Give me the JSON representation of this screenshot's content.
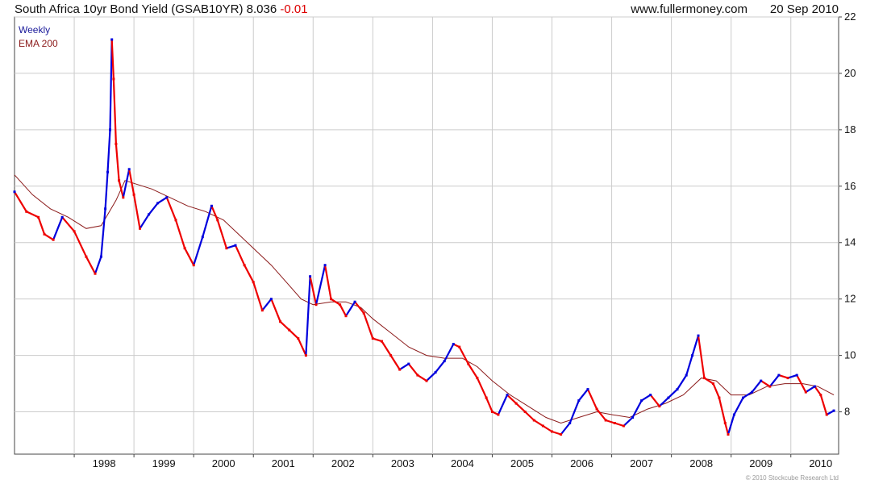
{
  "header": {
    "title": "South Africa 10yr Bond Yield (GSAB10YR) 8.036",
    "change": "-0.01",
    "site": "www.fullermoney.com",
    "date": "20 Sep 2010"
  },
  "legend": {
    "weekly": "Weekly",
    "ema": "EMA 200"
  },
  "copyright": "© 2010 Stockcube Research Ltd",
  "colors": {
    "up": "#0000dd",
    "down": "#ee0000",
    "ema": "#8b1a1a",
    "grid": "#cccccc",
    "change": "#dd0000",
    "legend_weekly": "#1a1a9a",
    "legend_ema": "#8b1a1a"
  },
  "chart_data": {
    "type": "line",
    "title": "South Africa 10yr Bond Yield (GSAB10YR) 8.036 -0.01",
    "xlabel": "",
    "ylabel": "",
    "x_ticks": [
      "1998",
      "1999",
      "2000",
      "2001",
      "2002",
      "2003",
      "2004",
      "2005",
      "2006",
      "2007",
      "2008",
      "2009",
      "2010"
    ],
    "y_ticks": [
      8,
      10,
      12,
      14,
      16,
      18,
      20,
      22
    ],
    "ylim": [
      6.5,
      22
    ],
    "xlim": [
      1997.0,
      2010.8
    ],
    "grid": true,
    "legend_placement": "top-left",
    "series": [
      {
        "name": "Weekly",
        "points": [
          [
            1997.0,
            15.8
          ],
          [
            1997.2,
            15.1
          ],
          [
            1997.4,
            14.9
          ],
          [
            1997.5,
            14.3
          ],
          [
            1997.65,
            14.1
          ],
          [
            1997.8,
            14.9
          ],
          [
            1998.0,
            14.4
          ],
          [
            1998.2,
            13.5
          ],
          [
            1998.35,
            12.9
          ],
          [
            1998.45,
            13.5
          ],
          [
            1998.52,
            15.2
          ],
          [
            1998.56,
            16.5
          ],
          [
            1998.6,
            18.0
          ],
          [
            1998.63,
            21.2
          ],
          [
            1998.66,
            19.8
          ],
          [
            1998.7,
            17.5
          ],
          [
            1998.75,
            16.2
          ],
          [
            1998.82,
            15.6
          ],
          [
            1998.92,
            16.6
          ],
          [
            1999.0,
            15.7
          ],
          [
            1999.1,
            14.5
          ],
          [
            1999.25,
            15.0
          ],
          [
            1999.4,
            15.4
          ],
          [
            1999.55,
            15.6
          ],
          [
            1999.7,
            14.8
          ],
          [
            1999.85,
            13.8
          ],
          [
            2000.0,
            13.2
          ],
          [
            2000.15,
            14.2
          ],
          [
            2000.3,
            15.3
          ],
          [
            2000.4,
            14.8
          ],
          [
            2000.55,
            13.8
          ],
          [
            2000.7,
            13.9
          ],
          [
            2000.85,
            13.2
          ],
          [
            2001.0,
            12.6
          ],
          [
            2001.15,
            11.6
          ],
          [
            2001.3,
            12.0
          ],
          [
            2001.45,
            11.2
          ],
          [
            2001.6,
            10.9
          ],
          [
            2001.75,
            10.6
          ],
          [
            2001.88,
            10.0
          ],
          [
            2001.95,
            12.8
          ],
          [
            2002.05,
            11.8
          ],
          [
            2002.2,
            13.2
          ],
          [
            2002.3,
            12.0
          ],
          [
            2002.45,
            11.8
          ],
          [
            2002.55,
            11.4
          ],
          [
            2002.7,
            11.9
          ],
          [
            2002.85,
            11.5
          ],
          [
            2003.0,
            10.6
          ],
          [
            2003.15,
            10.5
          ],
          [
            2003.3,
            10.0
          ],
          [
            2003.45,
            9.5
          ],
          [
            2003.6,
            9.7
          ],
          [
            2003.75,
            9.3
          ],
          [
            2003.9,
            9.1
          ],
          [
            2004.05,
            9.4
          ],
          [
            2004.2,
            9.8
          ],
          [
            2004.35,
            10.4
          ],
          [
            2004.45,
            10.3
          ],
          [
            2004.6,
            9.7
          ],
          [
            2004.75,
            9.2
          ],
          [
            2004.9,
            8.5
          ],
          [
            2005.0,
            8.0
          ],
          [
            2005.1,
            7.9
          ],
          [
            2005.25,
            8.6
          ],
          [
            2005.4,
            8.3
          ],
          [
            2005.55,
            8.0
          ],
          [
            2005.7,
            7.7
          ],
          [
            2005.85,
            7.5
          ],
          [
            2006.0,
            7.3
          ],
          [
            2006.15,
            7.2
          ],
          [
            2006.3,
            7.6
          ],
          [
            2006.45,
            8.4
          ],
          [
            2006.6,
            8.8
          ],
          [
            2006.75,
            8.1
          ],
          [
            2006.9,
            7.7
          ],
          [
            2007.05,
            7.6
          ],
          [
            2007.2,
            7.5
          ],
          [
            2007.35,
            7.8
          ],
          [
            2007.5,
            8.4
          ],
          [
            2007.65,
            8.6
          ],
          [
            2007.8,
            8.2
          ],
          [
            2007.95,
            8.5
          ],
          [
            2008.1,
            8.8
          ],
          [
            2008.25,
            9.3
          ],
          [
            2008.35,
            10.0
          ],
          [
            2008.45,
            10.7
          ],
          [
            2008.55,
            9.2
          ],
          [
            2008.7,
            9.0
          ],
          [
            2008.8,
            8.5
          ],
          [
            2008.9,
            7.6
          ],
          [
            2008.95,
            7.2
          ],
          [
            2009.05,
            7.9
          ],
          [
            2009.2,
            8.5
          ],
          [
            2009.35,
            8.7
          ],
          [
            2009.5,
            9.1
          ],
          [
            2009.65,
            8.9
          ],
          [
            2009.8,
            9.3
          ],
          [
            2009.95,
            9.2
          ],
          [
            2010.1,
            9.3
          ],
          [
            2010.25,
            8.7
          ],
          [
            2010.4,
            8.9
          ],
          [
            2010.5,
            8.6
          ],
          [
            2010.6,
            7.9
          ],
          [
            2010.72,
            8.04
          ]
        ]
      },
      {
        "name": "EMA 200",
        "points": [
          [
            1997.0,
            16.4
          ],
          [
            1997.3,
            15.7
          ],
          [
            1997.6,
            15.2
          ],
          [
            1997.9,
            14.9
          ],
          [
            1998.2,
            14.5
          ],
          [
            1998.45,
            14.6
          ],
          [
            1998.7,
            15.5
          ],
          [
            1998.85,
            16.2
          ],
          [
            1999.0,
            16.1
          ],
          [
            1999.3,
            15.9
          ],
          [
            1999.6,
            15.6
          ],
          [
            1999.9,
            15.3
          ],
          [
            2000.2,
            15.1
          ],
          [
            2000.5,
            14.8
          ],
          [
            2000.75,
            14.3
          ],
          [
            2001.0,
            13.8
          ],
          [
            2001.3,
            13.2
          ],
          [
            2001.55,
            12.6
          ],
          [
            2001.8,
            12.0
          ],
          [
            2002.0,
            11.8
          ],
          [
            2002.3,
            11.9
          ],
          [
            2002.55,
            11.9
          ],
          [
            2002.8,
            11.7
          ],
          [
            2003.0,
            11.3
          ],
          [
            2003.3,
            10.8
          ],
          [
            2003.6,
            10.3
          ],
          [
            2003.9,
            10.0
          ],
          [
            2004.2,
            9.9
          ],
          [
            2004.5,
            9.9
          ],
          [
            2004.75,
            9.6
          ],
          [
            2005.0,
            9.1
          ],
          [
            2005.3,
            8.6
          ],
          [
            2005.6,
            8.2
          ],
          [
            2005.9,
            7.8
          ],
          [
            2006.15,
            7.6
          ],
          [
            2006.45,
            7.8
          ],
          [
            2006.75,
            8.0
          ],
          [
            2007.0,
            7.9
          ],
          [
            2007.3,
            7.8
          ],
          [
            2007.6,
            8.1
          ],
          [
            2007.9,
            8.3
          ],
          [
            2008.2,
            8.6
          ],
          [
            2008.5,
            9.2
          ],
          [
            2008.75,
            9.1
          ],
          [
            2009.0,
            8.6
          ],
          [
            2009.3,
            8.6
          ],
          [
            2009.6,
            8.9
          ],
          [
            2009.9,
            9.0
          ],
          [
            2010.2,
            9.0
          ],
          [
            2010.45,
            8.9
          ],
          [
            2010.72,
            8.6
          ]
        ]
      }
    ]
  }
}
